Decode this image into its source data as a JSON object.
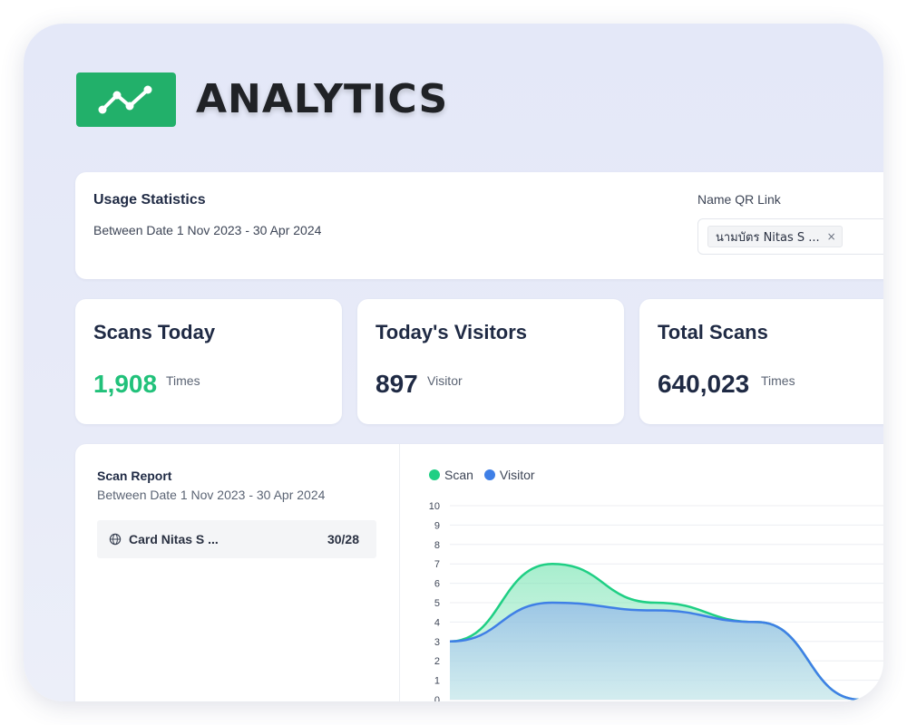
{
  "header": {
    "title": "ANALYTICS",
    "logo_icon": "line-chart-icon",
    "logo_color": "#22b06a"
  },
  "usage": {
    "title": "Usage Statistics",
    "date_range": "Between Date 1 Nov 2023 - 30 Apr 2024",
    "qr_label": "Name QR Link",
    "qr_tag": "นามบัตร Nitas S ...",
    "qr_tag_close": "×"
  },
  "stats": [
    {
      "title": "Scans Today",
      "value": "1,908",
      "unit": "Times"
    },
    {
      "title": "Today's Visitors",
      "value": "897",
      "unit": "Visitor"
    },
    {
      "title": "Total Scans",
      "value": "640,023",
      "unit": "Times"
    }
  ],
  "report": {
    "title": "Scan Report",
    "date_range": "Between Date 1 Nov 2023 - 30 Apr 2024",
    "rows": [
      {
        "icon": "globe-icon",
        "name": "Card Nitas S ...",
        "count": "30/28"
      }
    ]
  },
  "colors": {
    "accent_green": "#21c17a",
    "scan": "#1fcf84",
    "visitor": "#3f7fe6"
  },
  "chart_data": {
    "type": "area",
    "y_ticks": [
      "10",
      "9",
      "8",
      "7",
      "6",
      "5",
      "4",
      "3",
      "2",
      "1",
      "0"
    ],
    "ylim": [
      0,
      10
    ],
    "x": [
      0,
      1,
      2,
      3,
      4,
      5
    ],
    "series": [
      {
        "name": "Scan",
        "values": [
          3,
          7,
          5,
          4,
          0,
          0
        ]
      },
      {
        "name": "Visitor",
        "values": [
          3,
          5,
          4.6,
          4,
          0,
          0
        ]
      }
    ],
    "legend_position": "top-left",
    "grid": true
  }
}
